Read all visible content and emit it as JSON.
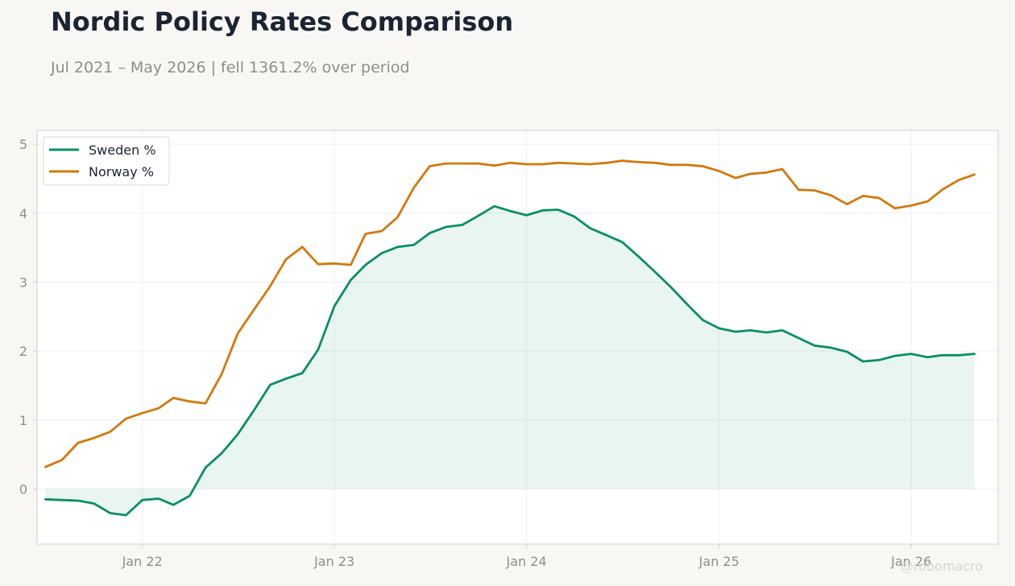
{
  "title": "Nordic Policy Rates Comparison",
  "subtitle": "Jul 2021 – May 2026 | fell 1361.2% over period",
  "watermark": "@robomacro",
  "colors": {
    "background": "#f9f7f4",
    "plot_background": "#ffffff",
    "sweden": "#0a8f62",
    "norway": "#d4780e",
    "grid": "#efefef",
    "axis": "#cfcfcf"
  },
  "chart_data": {
    "type": "line",
    "x_start": "2021-07",
    "x_interval": "month",
    "xlim": [
      "2021-06-15",
      "2026-06-15"
    ],
    "ylim": [
      -0.8,
      5.2
    ],
    "grid": true,
    "legend_position": "top-left",
    "fill_under_first_series": true,
    "x_ticks": [
      "Jan 22",
      "Jan 23",
      "Jan 24",
      "Jan 25",
      "Jan 26"
    ],
    "x_tick_dates": [
      "2022-01-01",
      "2023-01-01",
      "2024-01-01",
      "2025-01-01",
      "2026-01-01"
    ],
    "y_ticks": [
      0,
      1,
      2,
      3,
      4,
      5
    ],
    "series": [
      {
        "name": "Sweden %",
        "values": [
          -0.15,
          -0.16,
          -0.17,
          -0.21,
          -0.35,
          -0.38,
          -0.16,
          -0.14,
          -0.23,
          -0.1,
          0.31,
          0.52,
          0.79,
          1.14,
          1.51,
          1.6,
          1.68,
          2.02,
          2.65,
          3.03,
          3.25,
          3.42,
          3.51,
          3.54,
          3.71,
          3.8,
          3.83,
          3.96,
          4.1,
          4.03,
          3.97,
          4.04,
          4.05,
          3.95,
          3.78,
          3.68,
          3.58,
          3.37,
          3.15,
          2.93,
          2.68,
          2.45,
          2.33,
          2.28,
          2.3,
          2.27,
          2.3,
          2.19,
          2.08,
          2.05,
          1.99,
          1.85,
          1.87,
          1.93,
          1.96,
          1.91,
          1.94,
          1.94,
          1.96
        ]
      },
      {
        "name": "Norway %",
        "values": [
          0.32,
          0.42,
          0.67,
          0.74,
          0.83,
          1.02,
          1.1,
          1.17,
          1.32,
          1.27,
          1.24,
          1.67,
          2.25,
          2.6,
          2.94,
          3.33,
          3.51,
          3.26,
          3.27,
          3.25,
          3.7,
          3.74,
          3.94,
          4.37,
          4.68,
          4.72,
          4.72,
          4.72,
          4.69,
          4.73,
          4.71,
          4.71,
          4.73,
          4.72,
          4.71,
          4.73,
          4.76,
          4.74,
          4.73,
          4.7,
          4.7,
          4.68,
          4.61,
          4.51,
          4.57,
          4.59,
          4.64,
          4.34,
          4.33,
          4.26,
          4.13,
          4.25,
          4.22,
          4.07,
          4.11,
          4.17,
          4.34,
          4.48,
          4.56
        ]
      }
    ]
  }
}
